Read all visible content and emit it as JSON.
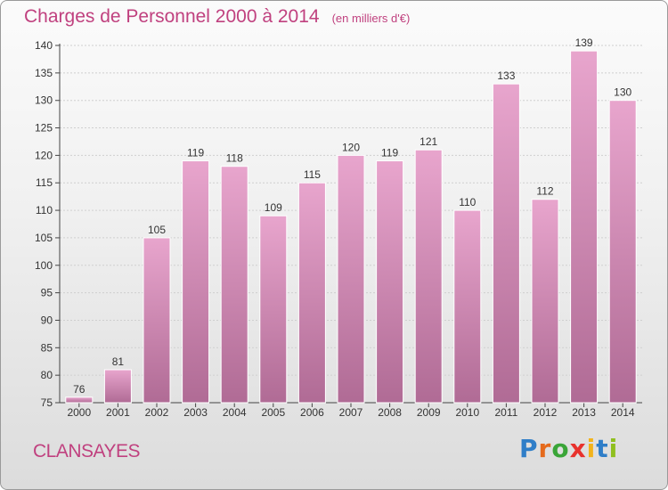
{
  "title": "Charges de Personnel 2000 à 2014",
  "subtitle": "(en milliers d'€)",
  "commune": "CLANSAYES",
  "logo_text": "Proxiti",
  "colors": {
    "title": "#c0417f",
    "bar_top": "#e8a5cd",
    "bar_bottom": "#b06b95"
  },
  "chart_data": {
    "type": "bar",
    "title": "Charges de Personnel 2000 à 2014",
    "subtitle": "(en milliers d'€)",
    "categories": [
      "2000",
      "2001",
      "2002",
      "2003",
      "2004",
      "2005",
      "2006",
      "2007",
      "2008",
      "2009",
      "2010",
      "2011",
      "2012",
      "2013",
      "2014"
    ],
    "values": [
      76,
      81,
      105,
      119,
      118,
      109,
      115,
      120,
      119,
      121,
      110,
      133,
      112,
      139,
      130
    ],
    "ylim": [
      75,
      140
    ],
    "yticks": [
      75,
      80,
      85,
      90,
      95,
      100,
      105,
      110,
      115,
      120,
      125,
      130,
      135,
      140
    ],
    "grid": true,
    "xlabel": "",
    "ylabel": ""
  }
}
